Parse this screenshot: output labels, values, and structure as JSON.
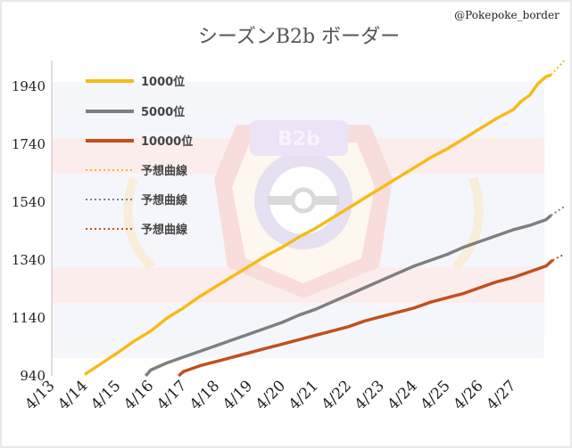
{
  "watermark": "@Pokepoke_border",
  "chart_data": {
    "type": "line",
    "title": "シーズンB2b ボーダー",
    "background_badge_text": "B2b",
    "xlabel": "",
    "ylabel": "",
    "ylim": [
      940,
      2030
    ],
    "yticks": [
      940,
      1140,
      1340,
      1540,
      1740,
      1940
    ],
    "x_range": [
      "4/13",
      "4/28"
    ],
    "xticks": [
      "4/13",
      "4/14",
      "4/15",
      "4/16",
      "4/17",
      "4/18",
      "4/19",
      "4/20",
      "4/21",
      "4/22",
      "4/23",
      "4/24",
      "4/25",
      "4/26",
      "4/27"
    ],
    "grid": false,
    "legend_position": "top-left",
    "colors": {
      "rank_1000": "#F5BC19",
      "rank_5000": "#7F7F7F",
      "rank_10000": "#C0501E"
    },
    "series": [
      {
        "name": "1000位",
        "style": "solid",
        "color": "#F5BC19",
        "x": [
          "4/14",
          "4/14",
          "4/15",
          "4/15",
          "4/16",
          "4/16",
          "4/17",
          "4/17",
          "4/18",
          "4/18",
          "4/19",
          "4/19",
          "4/20",
          "4/20",
          "4/21",
          "4/21",
          "4/22",
          "4/22",
          "4/23",
          "4/23",
          "4/24",
          "4/24",
          "4/25",
          "4/25",
          "4/26",
          "4/26",
          "4/27",
          "4/27",
          "4/27",
          "4/27",
          "4/28",
          "4/28"
        ],
        "xfrac": [
          0.0,
          0.6,
          0.0,
          0.5,
          0.0,
          0.5,
          0.0,
          0.5,
          0.0,
          0.5,
          0.0,
          0.5,
          0.0,
          0.5,
          0.0,
          0.5,
          0.0,
          0.5,
          0.0,
          0.5,
          0.0,
          0.5,
          0.0,
          0.5,
          0.0,
          0.5,
          0.0,
          0.25,
          0.5,
          0.75,
          0.0,
          0.15
        ],
        "values": [
          945,
          990,
          1020,
          1060,
          1095,
          1140,
          1175,
          1215,
          1250,
          1285,
          1320,
          1355,
          1385,
          1420,
          1450,
          1485,
          1520,
          1555,
          1590,
          1625,
          1660,
          1695,
          1725,
          1760,
          1795,
          1830,
          1860,
          1890,
          1910,
          1950,
          1975,
          1980
        ]
      },
      {
        "name": "5000位",
        "style": "solid",
        "color": "#7F7F7F",
        "x": [
          "4/15",
          "4/16",
          "4/16",
          "4/17",
          "4/17",
          "4/18",
          "4/18",
          "4/19",
          "4/19",
          "4/20",
          "4/20",
          "4/21",
          "4/21",
          "4/22",
          "4/22",
          "4/23",
          "4/23",
          "4/24",
          "4/24",
          "4/25",
          "4/25",
          "4/26",
          "4/26",
          "4/27",
          "4/27",
          "4/28",
          "4/28"
        ],
        "xfrac": [
          0.85,
          0.0,
          0.5,
          0.0,
          0.5,
          0.0,
          0.5,
          0.0,
          0.5,
          0.0,
          0.5,
          0.0,
          0.5,
          0.0,
          0.5,
          0.0,
          0.5,
          0.0,
          0.5,
          0.0,
          0.5,
          0.0,
          0.5,
          0.0,
          0.5,
          0.0,
          0.15
        ],
        "values": [
          940,
          960,
          985,
          1005,
          1025,
          1045,
          1065,
          1085,
          1105,
          1125,
          1150,
          1170,
          1195,
          1220,
          1245,
          1270,
          1295,
          1320,
          1340,
          1360,
          1385,
          1405,
          1425,
          1445,
          1460,
          1480,
          1495
        ]
      },
      {
        "name": "10000位",
        "style": "solid",
        "color": "#C0501E",
        "x": [
          "4/16",
          "4/17",
          "4/17",
          "4/18",
          "4/18",
          "4/19",
          "4/19",
          "4/20",
          "4/20",
          "4/21",
          "4/21",
          "4/22",
          "4/22",
          "4/23",
          "4/23",
          "4/24",
          "4/24",
          "4/25",
          "4/25",
          "4/26",
          "4/26",
          "4/27",
          "4/27",
          "4/28",
          "4/28"
        ],
        "xfrac": [
          0.85,
          0.0,
          0.5,
          0.0,
          0.5,
          0.0,
          0.5,
          0.0,
          0.5,
          0.0,
          0.5,
          0.0,
          0.5,
          0.0,
          0.5,
          0.0,
          0.5,
          0.0,
          0.5,
          0.0,
          0.5,
          0.0,
          0.5,
          0.0,
          0.2
        ],
        "values": [
          940,
          955,
          975,
          990,
          1005,
          1020,
          1035,
          1050,
          1065,
          1080,
          1095,
          1110,
          1130,
          1145,
          1160,
          1175,
          1195,
          1210,
          1225,
          1245,
          1265,
          1280,
          1300,
          1320,
          1340
        ]
      },
      {
        "name": "予想曲線",
        "style": "dotted",
        "color": "#F5BC19",
        "x": [
          "4/28",
          "4/28"
        ],
        "xfrac": [
          0.15,
          0.55
        ],
        "values": [
          1980,
          2050
        ]
      },
      {
        "name": "予想曲線",
        "style": "dotted",
        "color": "#7F7F7F",
        "x": [
          "4/28",
          "4/28"
        ],
        "xfrac": [
          0.15,
          0.55
        ],
        "values": [
          1495,
          1525
        ]
      },
      {
        "name": "予想曲線",
        "style": "dotted",
        "color": "#C0501E",
        "x": [
          "4/28",
          "4/28"
        ],
        "xfrac": [
          0.2,
          0.55
        ],
        "values": [
          1340,
          1360
        ]
      }
    ]
  }
}
